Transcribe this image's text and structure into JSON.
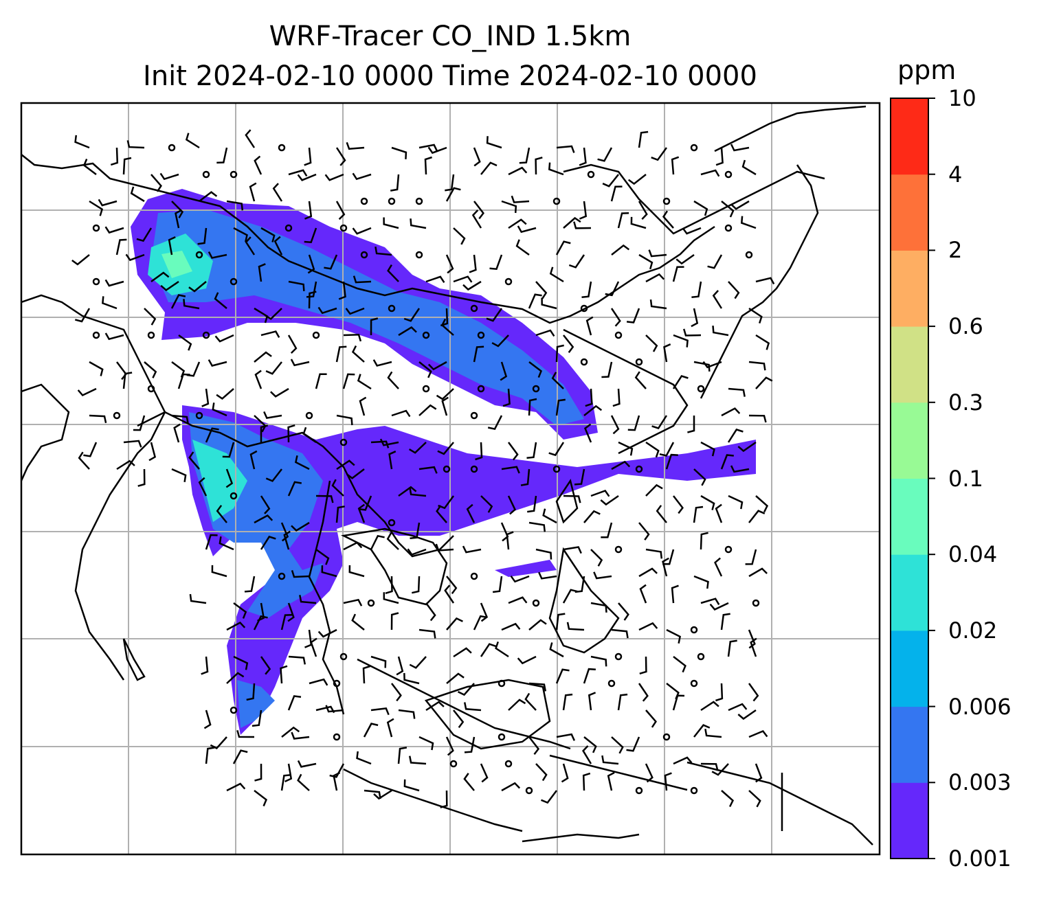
{
  "title": {
    "line1": "WRF-Tracer CO_IND 1.5km",
    "line2": "Init 2024-02-10 0000 Time 2024-02-10 0000"
  },
  "colorbar": {
    "unit": "ppm",
    "levels": [
      "0.001",
      "0.003",
      "0.006",
      "0.02",
      "0.04",
      "0.1",
      "0.3",
      "0.6",
      "2",
      "4",
      "10"
    ],
    "colors": [
      "#6528fb",
      "#3476f1",
      "#04b2eb",
      "#2ee2d7",
      "#69fcbd",
      "#98fa95",
      "#d0e186",
      "#feae62",
      "#fe7139",
      "#fe2a17"
    ]
  },
  "map": {
    "gridlines": true,
    "features": [
      "coastlines",
      "country-borders",
      "wind-barbs",
      "co-tracer-plume"
    ]
  }
}
